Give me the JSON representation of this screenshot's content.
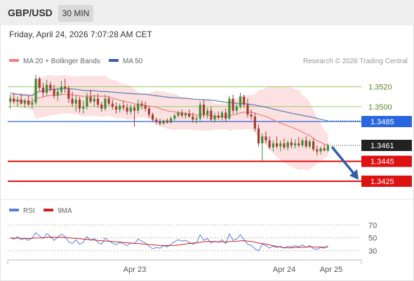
{
  "header": {
    "symbol": "GBP/USD",
    "timeframe": "30 MIN",
    "datetime": "Friday, April 24, 2026 7:07:28 AM CET"
  },
  "legend": {
    "ma20_label": "MA 20 + Bollinger Bands",
    "ma50_label": "MA 50",
    "credit": "Research © 2026 Trading Central",
    "rsi_label": "RSI",
    "rsi_ma_label": "9MA"
  },
  "colors": {
    "bull": "#3d8b33",
    "bear": "#a33a2f",
    "bollinger_fill": "#fadcdc",
    "ma20": "#f08080",
    "ma50": "#3a5fa8",
    "support": "#dd1111",
    "pivot": "#2a66e0",
    "resistance_green": "#9ccc65",
    "last_price_bg": "#222222",
    "rsi": "#5b7fe0",
    "rsi_ma": "#cc2222",
    "arrow": "#2e5fa8"
  },
  "chart_data": [
    {
      "type": "candlestick",
      "title": "GBP/USD 30 MIN",
      "ylim": [
        1.3408,
        1.3538
      ],
      "x_ticks": [
        "Apr 23",
        "Apr 24",
        "Apr 25"
      ],
      "last_price": 1.3461,
      "levels": [
        {
          "value": 1.352,
          "label": "1.3520",
          "kind": "resistance"
        },
        {
          "value": 1.35,
          "label": "1.3500",
          "kind": "resistance"
        },
        {
          "value": 1.3485,
          "label": "1.3485",
          "kind": "pivot"
        },
        {
          "value": 1.3445,
          "label": "1.3445",
          "kind": "support"
        },
        {
          "value": 1.3425,
          "label": "1.3425",
          "kind": "support"
        }
      ],
      "ohlc": [
        [
          1.3505,
          1.3512,
          1.3498,
          1.3508
        ],
        [
          1.3508,
          1.3514,
          1.3503,
          1.3505
        ],
        [
          1.3505,
          1.351,
          1.35,
          1.3507
        ],
        [
          1.3507,
          1.3513,
          1.3502,
          1.3503
        ],
        [
          1.3503,
          1.3508,
          1.3499,
          1.3506
        ],
        [
          1.3506,
          1.3511,
          1.3501,
          1.3502
        ],
        [
          1.3502,
          1.3509,
          1.3498,
          1.3504
        ],
        [
          1.3504,
          1.3532,
          1.3502,
          1.3528
        ],
        [
          1.3528,
          1.353,
          1.3516,
          1.3519
        ],
        [
          1.3519,
          1.3524,
          1.351,
          1.3514
        ],
        [
          1.3514,
          1.3527,
          1.3511,
          1.3522
        ],
        [
          1.3522,
          1.3525,
          1.3515,
          1.3518
        ],
        [
          1.3518,
          1.3522,
          1.3508,
          1.3511
        ],
        [
          1.3511,
          1.3519,
          1.3506,
          1.3515
        ],
        [
          1.3515,
          1.3526,
          1.3512,
          1.352
        ],
        [
          1.352,
          1.3528,
          1.3514,
          1.3518
        ],
        [
          1.3518,
          1.3521,
          1.3504,
          1.3508
        ],
        [
          1.3508,
          1.3515,
          1.35,
          1.3503
        ],
        [
          1.3503,
          1.3511,
          1.3495,
          1.3507
        ],
        [
          1.3507,
          1.351,
          1.3494,
          1.3498
        ],
        [
          1.3498,
          1.3506,
          1.3493,
          1.35
        ],
        [
          1.35,
          1.3514,
          1.3497,
          1.351
        ],
        [
          1.351,
          1.3517,
          1.3503,
          1.3505
        ],
        [
          1.3505,
          1.3512,
          1.35,
          1.3508
        ],
        [
          1.3508,
          1.3513,
          1.3499,
          1.3502
        ],
        [
          1.3502,
          1.3505,
          1.3495,
          1.3498
        ],
        [
          1.3498,
          1.3512,
          1.3496,
          1.3508
        ],
        [
          1.3508,
          1.3511,
          1.3501,
          1.3503
        ],
        [
          1.3503,
          1.3507,
          1.3497,
          1.35
        ],
        [
          1.35,
          1.3504,
          1.3493,
          1.3497
        ],
        [
          1.3497,
          1.3503,
          1.3494,
          1.3501
        ],
        [
          1.3501,
          1.3506,
          1.3496,
          1.3499
        ],
        [
          1.3499,
          1.3503,
          1.3492,
          1.3495
        ],
        [
          1.3495,
          1.3502,
          1.3492,
          1.3499
        ],
        [
          1.3499,
          1.3502,
          1.348,
          1.3496
        ],
        [
          1.3496,
          1.3507,
          1.3493,
          1.3503
        ],
        [
          1.3503,
          1.3506,
          1.3497,
          1.3501
        ],
        [
          1.3501,
          1.3505,
          1.3495,
          1.3498
        ],
        [
          1.3498,
          1.35,
          1.3489,
          1.3492
        ],
        [
          1.3492,
          1.3494,
          1.3485,
          1.3487
        ],
        [
          1.3487,
          1.3489,
          1.3482,
          1.3485
        ],
        [
          1.3485,
          1.3488,
          1.3481,
          1.3483
        ],
        [
          1.3483,
          1.3487,
          1.3482,
          1.3486
        ],
        [
          1.3486,
          1.3488,
          1.3483,
          1.3484
        ],
        [
          1.3484,
          1.349,
          1.3483,
          1.3488
        ],
        [
          1.3488,
          1.3493,
          1.3486,
          1.3491
        ],
        [
          1.3491,
          1.3496,
          1.3489,
          1.3494
        ],
        [
          1.3494,
          1.3497,
          1.3489,
          1.3491
        ],
        [
          1.3491,
          1.3495,
          1.3488,
          1.3493
        ],
        [
          1.3493,
          1.3497,
          1.3489,
          1.349
        ],
        [
          1.349,
          1.3494,
          1.3484,
          1.3487
        ],
        [
          1.3487,
          1.3491,
          1.3483,
          1.3488
        ],
        [
          1.3488,
          1.3505,
          1.3486,
          1.3502
        ],
        [
          1.3502,
          1.3507,
          1.3489,
          1.3492
        ],
        [
          1.3492,
          1.3499,
          1.3488,
          1.3496
        ],
        [
          1.3496,
          1.35,
          1.3485,
          1.3487
        ],
        [
          1.3487,
          1.3494,
          1.3484,
          1.3491
        ],
        [
          1.3491,
          1.3495,
          1.3487,
          1.3489
        ],
        [
          1.3489,
          1.3496,
          1.3486,
          1.3494
        ],
        [
          1.3494,
          1.3498,
          1.3485,
          1.3488
        ],
        [
          1.3488,
          1.3511,
          1.3487,
          1.3508
        ],
        [
          1.3508,
          1.3512,
          1.3493,
          1.3496
        ],
        [
          1.3496,
          1.3503,
          1.3493,
          1.35
        ],
        [
          1.35,
          1.3514,
          1.3498,
          1.351
        ],
        [
          1.351,
          1.3512,
          1.3499,
          1.3502
        ],
        [
          1.3502,
          1.3508,
          1.3489,
          1.3492
        ],
        [
          1.3492,
          1.3497,
          1.3487,
          1.349
        ],
        [
          1.349,
          1.3494,
          1.3475,
          1.3478
        ],
        [
          1.3478,
          1.3482,
          1.346,
          1.3463
        ],
        [
          1.3463,
          1.3473,
          1.3444,
          1.347
        ],
        [
          1.347,
          1.3475,
          1.3463,
          1.3466
        ],
        [
          1.3466,
          1.347,
          1.3457,
          1.3459
        ],
        [
          1.3459,
          1.3466,
          1.3455,
          1.3463
        ],
        [
          1.3463,
          1.347,
          1.3458,
          1.346
        ],
        [
          1.346,
          1.3466,
          1.3455,
          1.3463
        ],
        [
          1.3463,
          1.3468,
          1.3457,
          1.3459
        ],
        [
          1.3459,
          1.3466,
          1.3456,
          1.3464
        ],
        [
          1.3464,
          1.3468,
          1.3458,
          1.3461
        ],
        [
          1.3461,
          1.3467,
          1.3458,
          1.3463
        ],
        [
          1.3463,
          1.3469,
          1.3459,
          1.3461
        ],
        [
          1.3461,
          1.3468,
          1.3459,
          1.3466
        ],
        [
          1.3466,
          1.347,
          1.3458,
          1.346
        ],
        [
          1.346,
          1.3467,
          1.3458,
          1.3465
        ],
        [
          1.3465,
          1.3468,
          1.3455,
          1.3457
        ],
        [
          1.3457,
          1.3461,
          1.3451,
          1.3455
        ],
        [
          1.3455,
          1.346,
          1.3452,
          1.3458
        ],
        [
          1.3458,
          1.3462,
          1.3455,
          1.3456
        ],
        [
          1.3456,
          1.3463,
          1.3454,
          1.3461
        ]
      ]
    },
    {
      "type": "line",
      "title": "RSI",
      "ylim": [
        20,
        78
      ],
      "y_ticks": [
        70,
        50,
        30
      ],
      "series": [
        {
          "name": "RSI",
          "values": [
            50,
            48,
            52,
            47,
            49,
            46,
            50,
            58,
            53,
            49,
            57,
            52,
            46,
            51,
            56,
            52,
            44,
            41,
            47,
            40,
            43,
            52,
            46,
            49,
            43,
            40,
            50,
            45,
            42,
            39,
            43,
            41,
            38,
            42,
            41,
            48,
            45,
            42,
            37,
            33,
            35,
            34,
            38,
            36,
            40,
            44,
            47,
            45,
            46,
            43,
            40,
            42,
            55,
            46,
            49,
            42,
            45,
            43,
            47,
            41,
            56,
            46,
            48,
            55,
            47,
            40,
            38,
            33,
            30,
            40,
            38,
            34,
            37,
            35,
            37,
            34,
            37,
            36,
            38,
            36,
            39,
            35,
            38,
            33,
            32,
            35,
            34,
            38
          ]
        },
        {
          "name": "9MA",
          "values": [
            50,
            49.5,
            49.5,
            49.2,
            49.1,
            49.0,
            49.3,
            49.8,
            49.9,
            50.0,
            51.0,
            51.2,
            51.1,
            51.0,
            50.9,
            50.6,
            50.1,
            49.6,
            49.2,
            48.7,
            48.0,
            47.6,
            47.0,
            46.6,
            45.9,
            45.4,
            45.1,
            44.8,
            44.4,
            43.9,
            43.5,
            42.9,
            42.4,
            41.9,
            41.5,
            41.2,
            40.7,
            40.2,
            39.6,
            39.1,
            38.6,
            38.2,
            38.0,
            37.9,
            38.0,
            38.4,
            38.9,
            39.6,
            40.4,
            41.2,
            41.9,
            42.3,
            43.4,
            43.8,
            44.3,
            44.2,
            44.2,
            44.0,
            43.9,
            43.5,
            44.2,
            44.3,
            44.6,
            45.5,
            45.6,
            45.0,
            44.4,
            43.3,
            41.9,
            41.1,
            40.3,
            39.0,
            37.8,
            36.5,
            35.6,
            34.9,
            34.6,
            34.5,
            35.0,
            35.0,
            35.3,
            35.4,
            36.1,
            35.8,
            35.6,
            35.5,
            35.4,
            35.6
          ]
        }
      ]
    }
  ]
}
